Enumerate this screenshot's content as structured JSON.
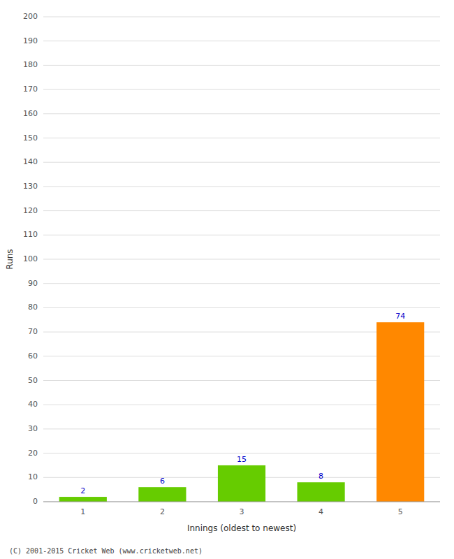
{
  "chart_data": {
    "type": "bar",
    "categories": [
      "1",
      "2",
      "3",
      "4",
      "5"
    ],
    "values": [
      2,
      6,
      15,
      8,
      74
    ],
    "colors": [
      "#66cc00",
      "#66cc00",
      "#66cc00",
      "#66cc00",
      "#ff8800"
    ],
    "ylabel": "Runs",
    "xlabel": "Innings (oldest to newest)",
    "ylim": [
      0,
      200
    ],
    "yticks": [
      0,
      10,
      20,
      30,
      40,
      50,
      60,
      70,
      80,
      90,
      100,
      110,
      120,
      130,
      140,
      150,
      160,
      170,
      180,
      190,
      200
    ],
    "grid": true,
    "data_labels": true,
    "annotations": [
      "(C) 2001-2015 Cricket Web (www.cricketweb.net)"
    ]
  }
}
